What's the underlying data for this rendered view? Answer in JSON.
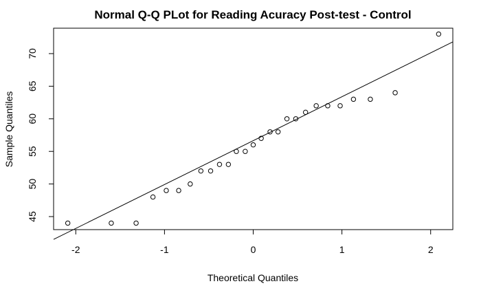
{
  "chart_data": {
    "type": "scatter",
    "title": "Normal Q-Q PLot for Reading Acuracy Post-test - Control",
    "xlabel": "Theoretical Quantiles",
    "ylabel": "Sample Quantiles",
    "xlim": [
      -2.25,
      2.25
    ],
    "ylim": [
      43.0,
      73.9
    ],
    "x_ticks": [
      -2,
      -1,
      0,
      1,
      2
    ],
    "x_tick_labels": [
      "-2",
      "-1",
      "0",
      "1",
      "2"
    ],
    "y_ticks": [
      45,
      50,
      55,
      60,
      65,
      70
    ],
    "y_tick_labels": [
      "45",
      "50",
      "55",
      "60",
      "65",
      "70"
    ],
    "grid": false,
    "points": {
      "x": [
        -2.09,
        -1.6,
        -1.32,
        -1.13,
        -0.98,
        -0.84,
        -0.71,
        -0.59,
        -0.48,
        -0.38,
        -0.28,
        -0.19,
        -0.09,
        0.0,
        0.09,
        0.19,
        0.28,
        0.38,
        0.48,
        0.59,
        0.71,
        0.84,
        0.98,
        1.13,
        1.32,
        1.6,
        2.09
      ],
      "y": [
        44,
        44,
        44,
        48,
        49,
        49,
        50,
        52,
        52,
        53,
        53,
        55,
        55,
        56,
        57,
        58,
        58,
        60,
        60,
        61,
        62,
        62,
        62,
        63,
        63,
        64,
        73
      ]
    },
    "reference_line": {
      "x": [
        -2.25,
        2.25
      ],
      "y": [
        41.5,
        71.8
      ]
    }
  }
}
